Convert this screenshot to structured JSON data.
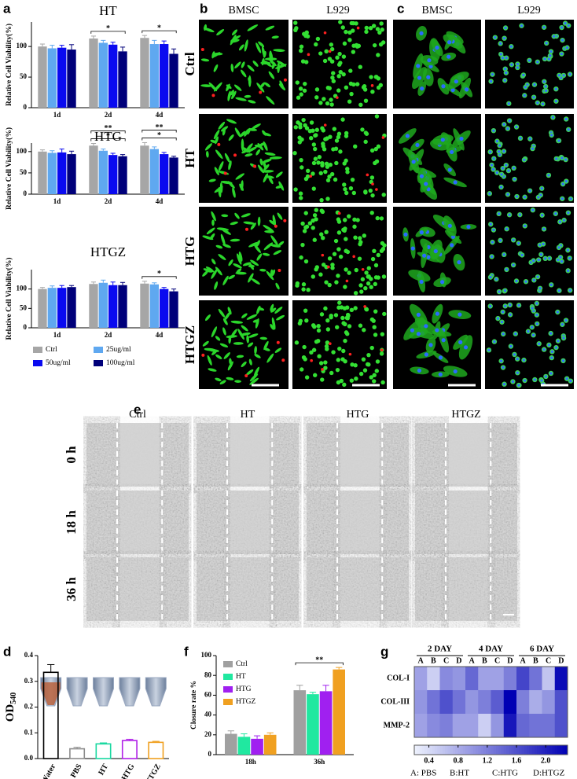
{
  "panel_labels": [
    "a",
    "b",
    "c",
    "d",
    "e",
    "f",
    "g"
  ],
  "panel_b": {
    "columns": [
      "BMSC",
      "L929"
    ],
    "rows": [
      "Ctrl",
      "HT",
      "HTG",
      "HTGZ"
    ]
  },
  "panel_c": {
    "columns": [
      "BMSC",
      "L929"
    ]
  },
  "panel_e": {
    "columns": [
      "Ctrl",
      "HT",
      "HTG",
      "HTGZ"
    ],
    "rows": [
      "0 h",
      "18 h",
      "36 h"
    ]
  },
  "chart_data": [
    {
      "type": "bar",
      "title": "HT",
      "ylabel": "Relative Cell Viability(%)",
      "categories": [
        "1d",
        "2d",
        "4d"
      ],
      "series": [
        {
          "color": "#a6a6a6",
          "values": [
            100,
            113,
            114
          ],
          "errors": [
            4,
            4,
            4
          ]
        },
        {
          "color": "#5fa8f0",
          "values": [
            97,
            106,
            104
          ],
          "errors": [
            5,
            4,
            6
          ]
        },
        {
          "color": "#0a0af0",
          "values": [
            98,
            103,
            104
          ],
          "errors": [
            4,
            4,
            5
          ]
        },
        {
          "color": "#00007a",
          "values": [
            95,
            92,
            88
          ],
          "errors": [
            8,
            7,
            8
          ]
        }
      ],
      "ylim": [
        0,
        140
      ],
      "yticks": [
        0,
        50,
        100
      ],
      "annotations": [
        {
          "text": "*",
          "category": "2d"
        },
        {
          "text": "*",
          "category": "4d"
        }
      ]
    },
    {
      "type": "bar",
      "title": "HTG",
      "ylabel": "Relative Cell Viability(%)",
      "categories": [
        "1d",
        "2d",
        "4d"
      ],
      "series": [
        {
          "color": "#a6a6a6",
          "values": [
            100,
            114,
            114
          ],
          "errors": [
            4,
            5,
            7
          ]
        },
        {
          "color": "#5fa8f0",
          "values": [
            97,
            102,
            106
          ],
          "errors": [
            5,
            4,
            5
          ]
        },
        {
          "color": "#0a0af0",
          "values": [
            98,
            92,
            94
          ],
          "errors": [
            8,
            4,
            4
          ]
        },
        {
          "color": "#00007a",
          "values": [
            94,
            89,
            86
          ],
          "errors": [
            7,
            4,
            3
          ]
        }
      ],
      "ylim": [
        0,
        120
      ],
      "yticks": [
        0,
        50,
        100
      ],
      "annotations": [
        {
          "text": "*",
          "category": "2d"
        },
        {
          "text": "**",
          "category": "2d"
        },
        {
          "text": "*",
          "category": "4d"
        },
        {
          "text": "**",
          "category": "4d"
        }
      ]
    },
    {
      "type": "bar",
      "title": "HTGZ",
      "ylabel": "Relative Cell Viability(%)",
      "categories": [
        "1d",
        "2d",
        "4d"
      ],
      "series": [
        {
          "name": "Ctrl",
          "color": "#a6a6a6",
          "values": [
            100,
            113,
            114
          ],
          "errors": [
            4,
            5,
            6
          ]
        },
        {
          "name": "25ug/ml",
          "color": "#5fa8f0",
          "values": [
            103,
            116,
            112
          ],
          "errors": [
            5,
            7,
            4
          ]
        },
        {
          "name": "50ug/ml",
          "color": "#0a0af0",
          "values": [
            103,
            110,
            100
          ],
          "errors": [
            6,
            8,
            4
          ]
        },
        {
          "name": "100ug/ml",
          "color": "#00007a",
          "values": [
            105,
            110,
            94
          ],
          "errors": [
            4,
            7,
            6
          ]
        }
      ],
      "ylim": [
        0,
        150
      ],
      "yticks": [
        0,
        50,
        100
      ],
      "legend": true,
      "annotations": [
        {
          "text": "*",
          "category": "4d"
        }
      ]
    },
    {
      "type": "bar",
      "ylabel": {
        "main": "OD",
        "sub": "540"
      },
      "categories": [
        "Water",
        "PBS",
        "HT",
        "HTG",
        "HTGZ"
      ],
      "values": [
        0.335,
        0.038,
        0.057,
        0.07,
        0.063
      ],
      "errors": [
        0.03,
        0.006,
        0.004,
        0.005,
        0.004
      ],
      "colors": [
        "#000000",
        "#8c8c8c",
        "#18d8a0",
        "#b020e8",
        "#f0a020"
      ],
      "style": "outline",
      "ylim": [
        0,
        0.4
      ],
      "yticks": [
        {
          "value": 0,
          "label": "0.0"
        },
        0.1,
        0.2,
        0.3,
        0.4
      ]
    },
    {
      "type": "bar",
      "ylabel": "Closure rate %",
      "categories": [
        "18h",
        "36h"
      ],
      "series": [
        {
          "name": "Ctrl",
          "color": "#a0a0a0",
          "values": [
            21,
            65
          ],
          "errors": [
            3,
            5
          ]
        },
        {
          "name": "HT",
          "color": "#20e8a0",
          "values": [
            18,
            61
          ],
          "errors": [
            3,
            2
          ]
        },
        {
          "name": "HTG",
          "color": "#a020f0",
          "values": [
            16,
            64
          ],
          "errors": [
            3,
            6
          ]
        },
        {
          "name": "HTGZ",
          "color": "#f0a020",
          "values": [
            20,
            86
          ],
          "errors": [
            2,
            2
          ]
        }
      ],
      "ylim": [
        0,
        100
      ],
      "yticks": [
        0,
        20,
        40,
        60,
        80,
        100
      ],
      "legend": true,
      "annotations": [
        {
          "text": "**",
          "category": "36h"
        }
      ]
    },
    {
      "type": "heatmap",
      "groups": [
        "2 DAY",
        "4 DAY",
        "6 DAY"
      ],
      "columns": [
        "A",
        "B",
        "C",
        "D"
      ],
      "rows": [
        "COL-I",
        "COL-III",
        "MMP-2"
      ],
      "values": [
        [
          0.9,
          0.5,
          1.1,
          1.0,
          1.4,
          0.9,
          0.9,
          1.2,
          1.7,
          1.3,
          0.6,
          2.2
        ],
        [
          1.0,
          1.3,
          1.6,
          1.3,
          1.0,
          1.2,
          1.5,
          2.3,
          1.2,
          0.8,
          1.0,
          1.6
        ],
        [
          0.9,
          1.1,
          1.2,
          0.9,
          0.9,
          0.5,
          1.0,
          2.1,
          1.4,
          1.3,
          1.3,
          1.6
        ]
      ],
      "clim": [
        0.2,
        2.3
      ],
      "colormap": [
        "#eef2fd",
        "#0000b4"
      ],
      "colorbar_ticks": [
        0.4,
        0.8,
        1.2,
        1.6,
        {
          "value": 2,
          "label": "2.0"
        }
      ],
      "caption": [
        "A: PBS",
        "B:HT",
        "C:HTG",
        "D:HTGZ"
      ]
    }
  ]
}
